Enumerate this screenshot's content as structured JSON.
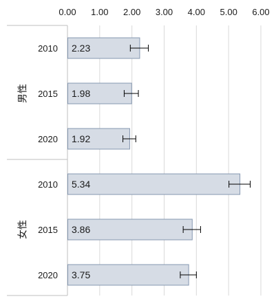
{
  "chart_data": {
    "type": "bar",
    "orientation": "horizontal",
    "xlim": [
      0,
      6
    ],
    "ticks": [
      "0.00",
      "1.00",
      "2.00",
      "3.00",
      "4.00",
      "5.00",
      "6.00"
    ],
    "tick_position": "top",
    "grid": true,
    "groups": [
      {
        "label": "男性",
        "categories": [
          "2010",
          "2015",
          "2020"
        ],
        "values": [
          2.23,
          1.98,
          1.92
        ],
        "value_labels": [
          "2.23",
          "1.98",
          "1.92"
        ],
        "errors": [
          0.28,
          0.22,
          0.2
        ]
      },
      {
        "label": "女性",
        "categories": [
          "2010",
          "2015",
          "2020"
        ],
        "values": [
          5.34,
          3.86,
          3.75
        ],
        "value_labels": [
          "5.34",
          "3.86",
          "3.75"
        ],
        "errors": [
          0.33,
          0.27,
          0.25
        ]
      }
    ],
    "colors": {
      "bar_fill": "#D6DCE5",
      "bar_stroke": "#8497B0",
      "grid": "#D9D9D9",
      "axis": "#BFBFBF",
      "error_bar": "#000000"
    }
  }
}
